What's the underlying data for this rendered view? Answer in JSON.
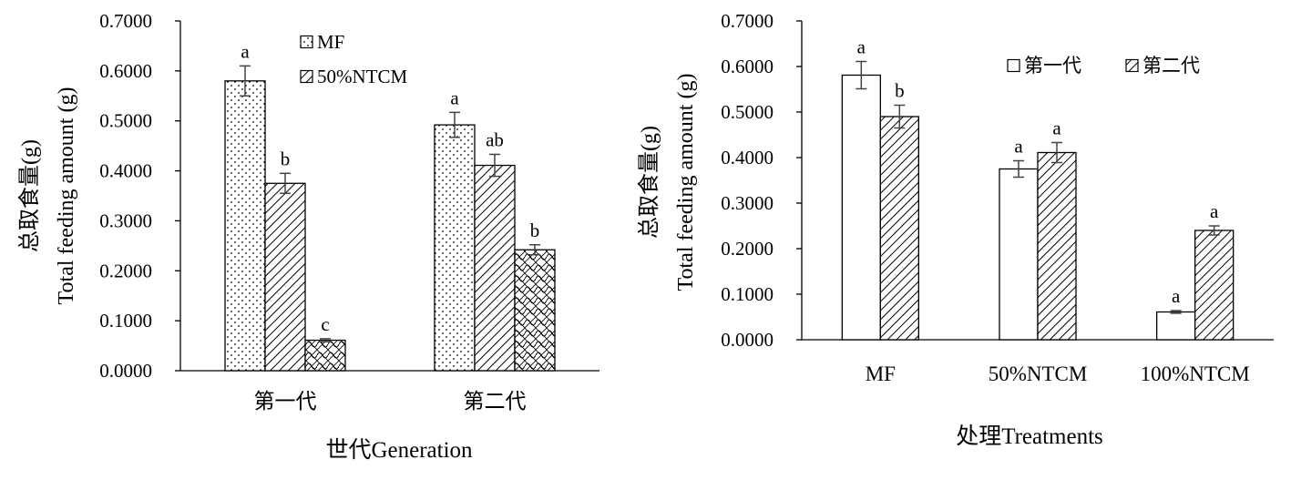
{
  "chart_data": [
    {
      "type": "bar",
      "xlabel": "世代Generation",
      "ylabel_cn": "总取食量(g)",
      "ylabel_en": "Total feeding amount (g)",
      "ylim": [
        0,
        0.7
      ],
      "yticks": [
        "0.0000",
        "0.1000",
        "0.2000",
        "0.3000",
        "0.4000",
        "0.5000",
        "0.6000",
        "0.7000"
      ],
      "categories": [
        "第一代",
        "第二代"
      ],
      "legend": [
        "MF",
        "50%NTCM"
      ],
      "legend_position": "top-right",
      "series": [
        {
          "name": "MF",
          "pattern": "dots",
          "values": [
            0.58,
            0.492
          ],
          "errors": [
            0.03,
            0.025
          ],
          "labels": [
            "a",
            "a"
          ]
        },
        {
          "name": "50%NTCM",
          "pattern": "diagonal",
          "values": [
            0.375,
            0.411
          ],
          "errors": [
            0.02,
            0.022
          ],
          "labels": [
            "b",
            "ab"
          ]
        },
        {
          "name": "",
          "pattern": "crosshatch",
          "values": [
            0.061,
            0.242
          ],
          "errors": [
            0.003,
            0.01
          ],
          "labels": [
            "c",
            "b"
          ]
        }
      ]
    },
    {
      "type": "bar",
      "xlabel": "处理Treatments",
      "ylabel_cn": "总取食量(g)",
      "ylabel_en": "Total feeding amount (g)",
      "ylim": [
        0,
        0.7
      ],
      "yticks": [
        "0.0000",
        "0.1000",
        "0.2000",
        "0.3000",
        "0.4000",
        "0.5000",
        "0.6000",
        "0.7000"
      ],
      "categories": [
        "MF",
        "50%NTCM",
        "100%NTCM"
      ],
      "legend": [
        "第一代",
        "第二代"
      ],
      "legend_position": "top-right",
      "series": [
        {
          "name": "第一代",
          "pattern": "none",
          "values": [
            0.581,
            0.375,
            0.061
          ],
          "errors": [
            0.03,
            0.018,
            0.003
          ],
          "labels": [
            "a",
            "a",
            "a"
          ]
        },
        {
          "name": "第二代",
          "pattern": "diagonal",
          "values": [
            0.49,
            0.411,
            0.24
          ],
          "errors": [
            0.025,
            0.022,
            0.01
          ],
          "labels": [
            "b",
            "a",
            "a"
          ]
        }
      ]
    }
  ]
}
